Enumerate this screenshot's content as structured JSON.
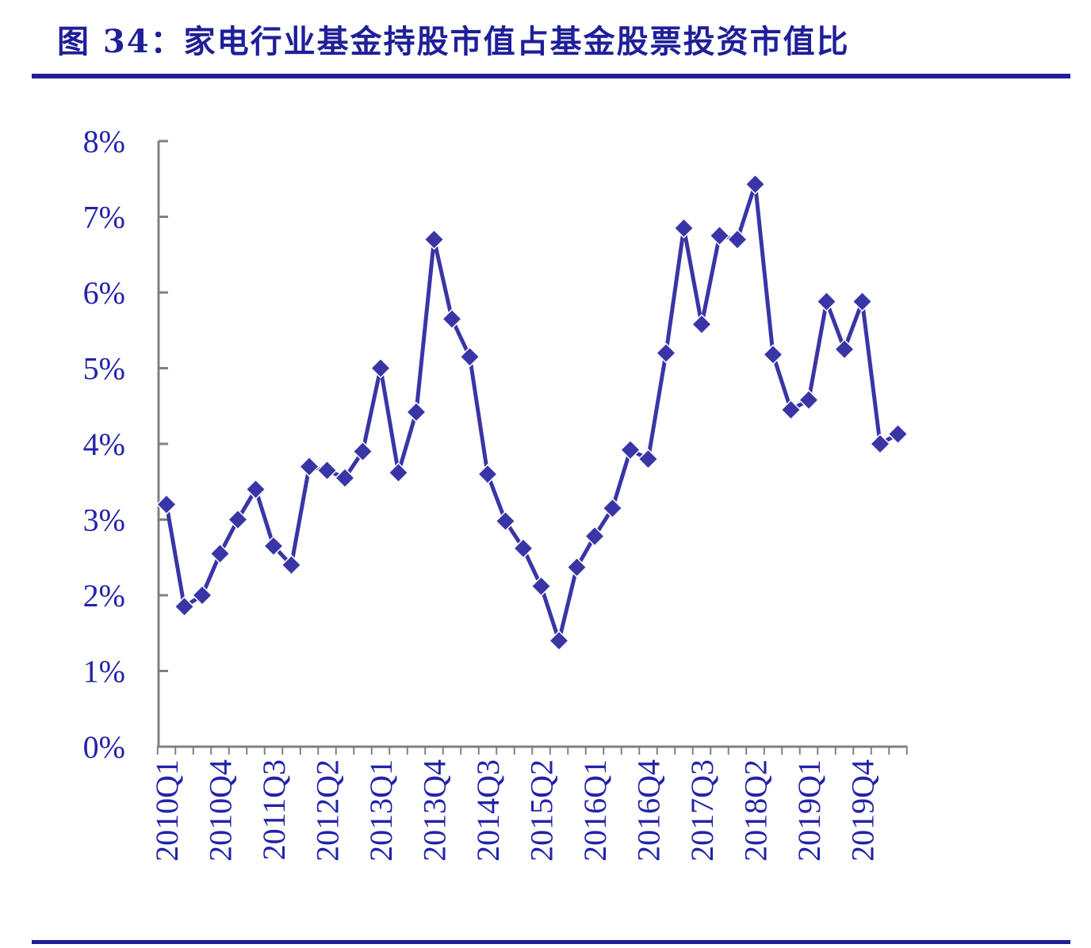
{
  "title": "图 34：家电行业基金持股市值占基金股票投资市值比",
  "colors": {
    "line": "#3a35a6",
    "marker": "#3a35a6",
    "axis": "#808080",
    "text": "#2323a8",
    "accent": "#1f1f99"
  },
  "chart_data": {
    "type": "line",
    "title": "",
    "xlabel": "",
    "ylabel": "",
    "ylim": [
      0,
      8
    ],
    "y_ticks": [
      "0%",
      "1%",
      "2%",
      "3%",
      "4%",
      "5%",
      "6%",
      "7%",
      "8%"
    ],
    "x_tick_labels": [
      "2010Q1",
      "2010Q4",
      "2011Q3",
      "2012Q2",
      "2013Q1",
      "2013Q4",
      "2014Q3",
      "2015Q2",
      "2016Q1",
      "2016Q4",
      "2017Q3",
      "2018Q2",
      "2019Q1",
      "2019Q4"
    ],
    "categories": [
      "2010Q1",
      "2010Q2",
      "2010Q3",
      "2010Q4",
      "2011Q1",
      "2011Q2",
      "2011Q3",
      "2011Q4",
      "2012Q1",
      "2012Q2",
      "2012Q3",
      "2012Q4",
      "2013Q1",
      "2013Q2",
      "2013Q3",
      "2013Q4",
      "2014Q1",
      "2014Q2",
      "2014Q3",
      "2014Q4",
      "2015Q1",
      "2015Q2",
      "2015Q3",
      "2015Q4",
      "2016Q1",
      "2016Q2",
      "2016Q3",
      "2016Q4",
      "2017Q1",
      "2017Q2",
      "2017Q3",
      "2017Q4",
      "2018Q1",
      "2018Q2",
      "2018Q3",
      "2018Q4",
      "2019Q1",
      "2019Q2",
      "2019Q3",
      "2019Q4",
      "2020Q1",
      "2020Q2"
    ],
    "series": [
      {
        "values": [
          3.2,
          1.85,
          2.0,
          2.55,
          3.0,
          3.4,
          2.65,
          2.4,
          3.7,
          3.65,
          3.55,
          3.9,
          5.0,
          3.62,
          4.42,
          6.7,
          5.65,
          5.15,
          3.6,
          2.98,
          2.62,
          2.12,
          1.4,
          2.37,
          2.78,
          3.15,
          3.92,
          3.8,
          5.2,
          6.85,
          5.58,
          6.75,
          6.7,
          7.43,
          5.18,
          4.45,
          4.58,
          5.88,
          5.25,
          5.88,
          4.0,
          4.13
        ]
      }
    ],
    "grid": false,
    "legend": "none"
  }
}
